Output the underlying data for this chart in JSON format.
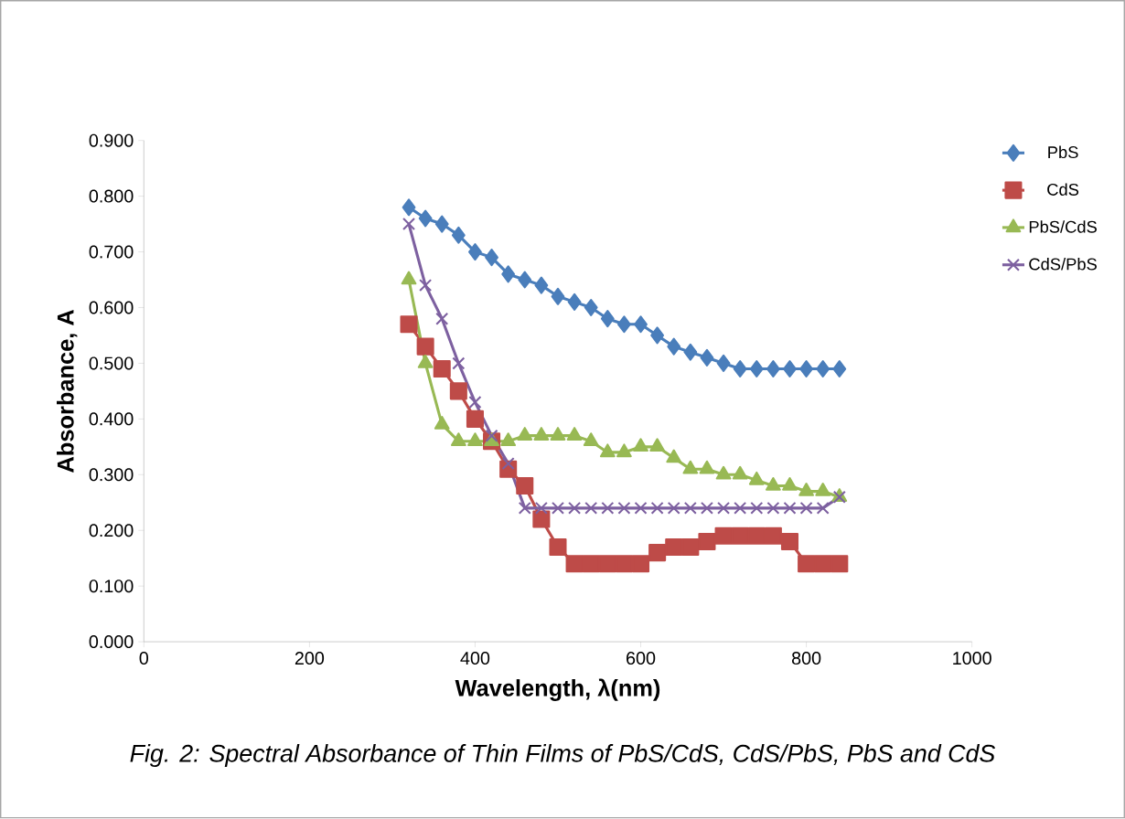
{
  "chart_data": {
    "type": "line",
    "xlabel": "Wavelength, λ(nm)",
    "ylabel": "Absorbance, A",
    "annotations": [
      "Fig. 2: Spectral Absorbance of Thin Films of PbS/CdS, CdS/PbS, PbS and CdS"
    ],
    "x": [
      320,
      340,
      360,
      380,
      400,
      420,
      440,
      460,
      480,
      500,
      520,
      540,
      560,
      580,
      600,
      620,
      640,
      660,
      680,
      700,
      720,
      740,
      760,
      780,
      800,
      820,
      840
    ],
    "series": [
      {
        "name": "PbS",
        "color": "#4a7ebb",
        "marker": "diamond",
        "values": [
          0.78,
          0.76,
          0.75,
          0.73,
          0.7,
          0.69,
          0.66,
          0.65,
          0.64,
          0.62,
          0.61,
          0.6,
          0.58,
          0.57,
          0.57,
          0.55,
          0.53,
          0.52,
          0.51,
          0.5,
          0.49,
          0.49,
          0.49,
          0.49,
          0.49,
          0.49,
          0.49
        ]
      },
      {
        "name": "CdS",
        "color": "#be4b48",
        "marker": "square",
        "values": [
          0.57,
          0.53,
          0.49,
          0.45,
          0.4,
          0.36,
          0.31,
          0.28,
          0.22,
          0.17,
          0.14,
          0.14,
          0.14,
          0.14,
          0.14,
          0.16,
          0.17,
          0.17,
          0.18,
          0.19,
          0.19,
          0.19,
          0.19,
          0.18,
          0.14,
          0.14,
          0.14
        ]
      },
      {
        "name": "PbS/CdS",
        "color": "#98b954",
        "marker": "triangle",
        "values": [
          0.65,
          0.5,
          0.39,
          0.36,
          0.36,
          0.36,
          0.36,
          0.37,
          0.37,
          0.37,
          0.37,
          0.36,
          0.34,
          0.34,
          0.35,
          0.35,
          0.33,
          0.31,
          0.31,
          0.3,
          0.3,
          0.29,
          0.28,
          0.28,
          0.27,
          0.27,
          0.26
        ]
      },
      {
        "name": "CdS/PbS",
        "color": "#7d60a0",
        "marker": "cross",
        "values": [
          0.75,
          0.64,
          0.58,
          0.5,
          0.43,
          0.37,
          0.32,
          0.24,
          0.24,
          0.24,
          0.24,
          0.24,
          0.24,
          0.24,
          0.24,
          0.24,
          0.24,
          0.24,
          0.24,
          0.24,
          0.24,
          0.24,
          0.24,
          0.24,
          0.24,
          0.24,
          0.26
        ]
      }
    ],
    "xlim": [
      0,
      1000
    ],
    "xticks": [
      0,
      200,
      400,
      600,
      800,
      1000
    ],
    "ylim": [
      0,
      0.9
    ],
    "yticks": [
      {
        "value": 0,
        "label": "0.000"
      },
      {
        "value": 0.1,
        "label": "0.100"
      },
      {
        "value": 0.2,
        "label": "0.200"
      },
      {
        "value": 0.3,
        "label": "0.300"
      },
      {
        "value": 0.4,
        "label": "0.400"
      },
      {
        "value": 0.5,
        "label": "0.500"
      },
      {
        "value": 0.6,
        "label": "0.600"
      },
      {
        "value": 0.7,
        "label": "0.700"
      },
      {
        "value": 0.8,
        "label": "0.800"
      },
      {
        "value": 0.9,
        "label": "0.900"
      }
    ],
    "legend": "right",
    "grid": false,
    "line_style": "solid"
  }
}
